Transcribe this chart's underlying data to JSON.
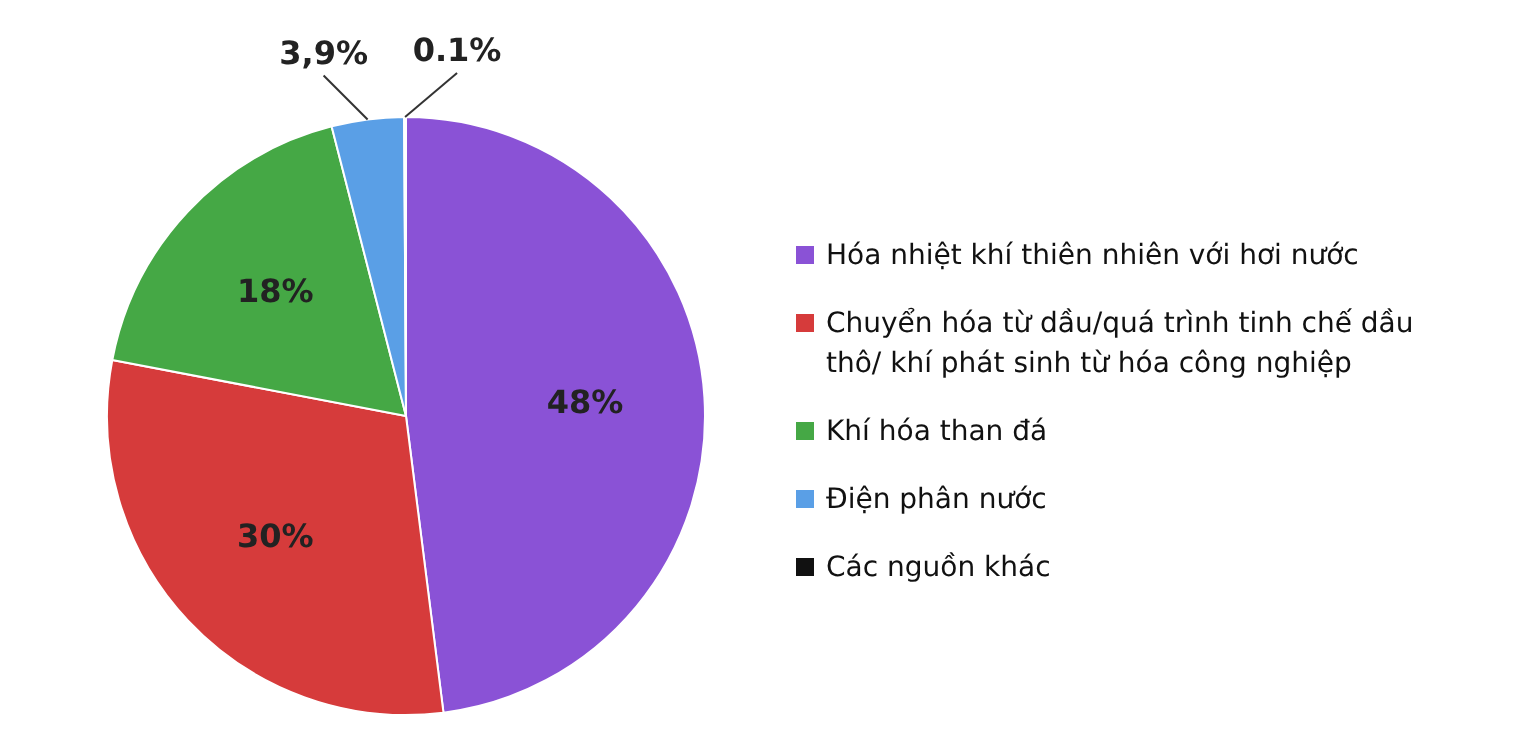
{
  "chart_data": {
    "type": "pie",
    "categories": [
      "Hóa nhiệt khí thiên nhiên với hơi nước",
      "Chuyển hóa từ dầu/quá trình tinh chế dầu thô/ khí phát sinh từ hóa công nghiệp",
      "Khí hóa than đá",
      "Điện phân nước",
      "Các nguồn khác"
    ],
    "values": [
      48,
      30,
      18,
      3.9,
      0.1
    ],
    "colors": [
      "#8a52d6",
      "#d63b3b",
      "#45a845",
      "#5a9fe6",
      "#111111"
    ],
    "value_labels": [
      "48%",
      "30%",
      "18%",
      "3,9%",
      "0.1%"
    ],
    "legend": "right"
  }
}
